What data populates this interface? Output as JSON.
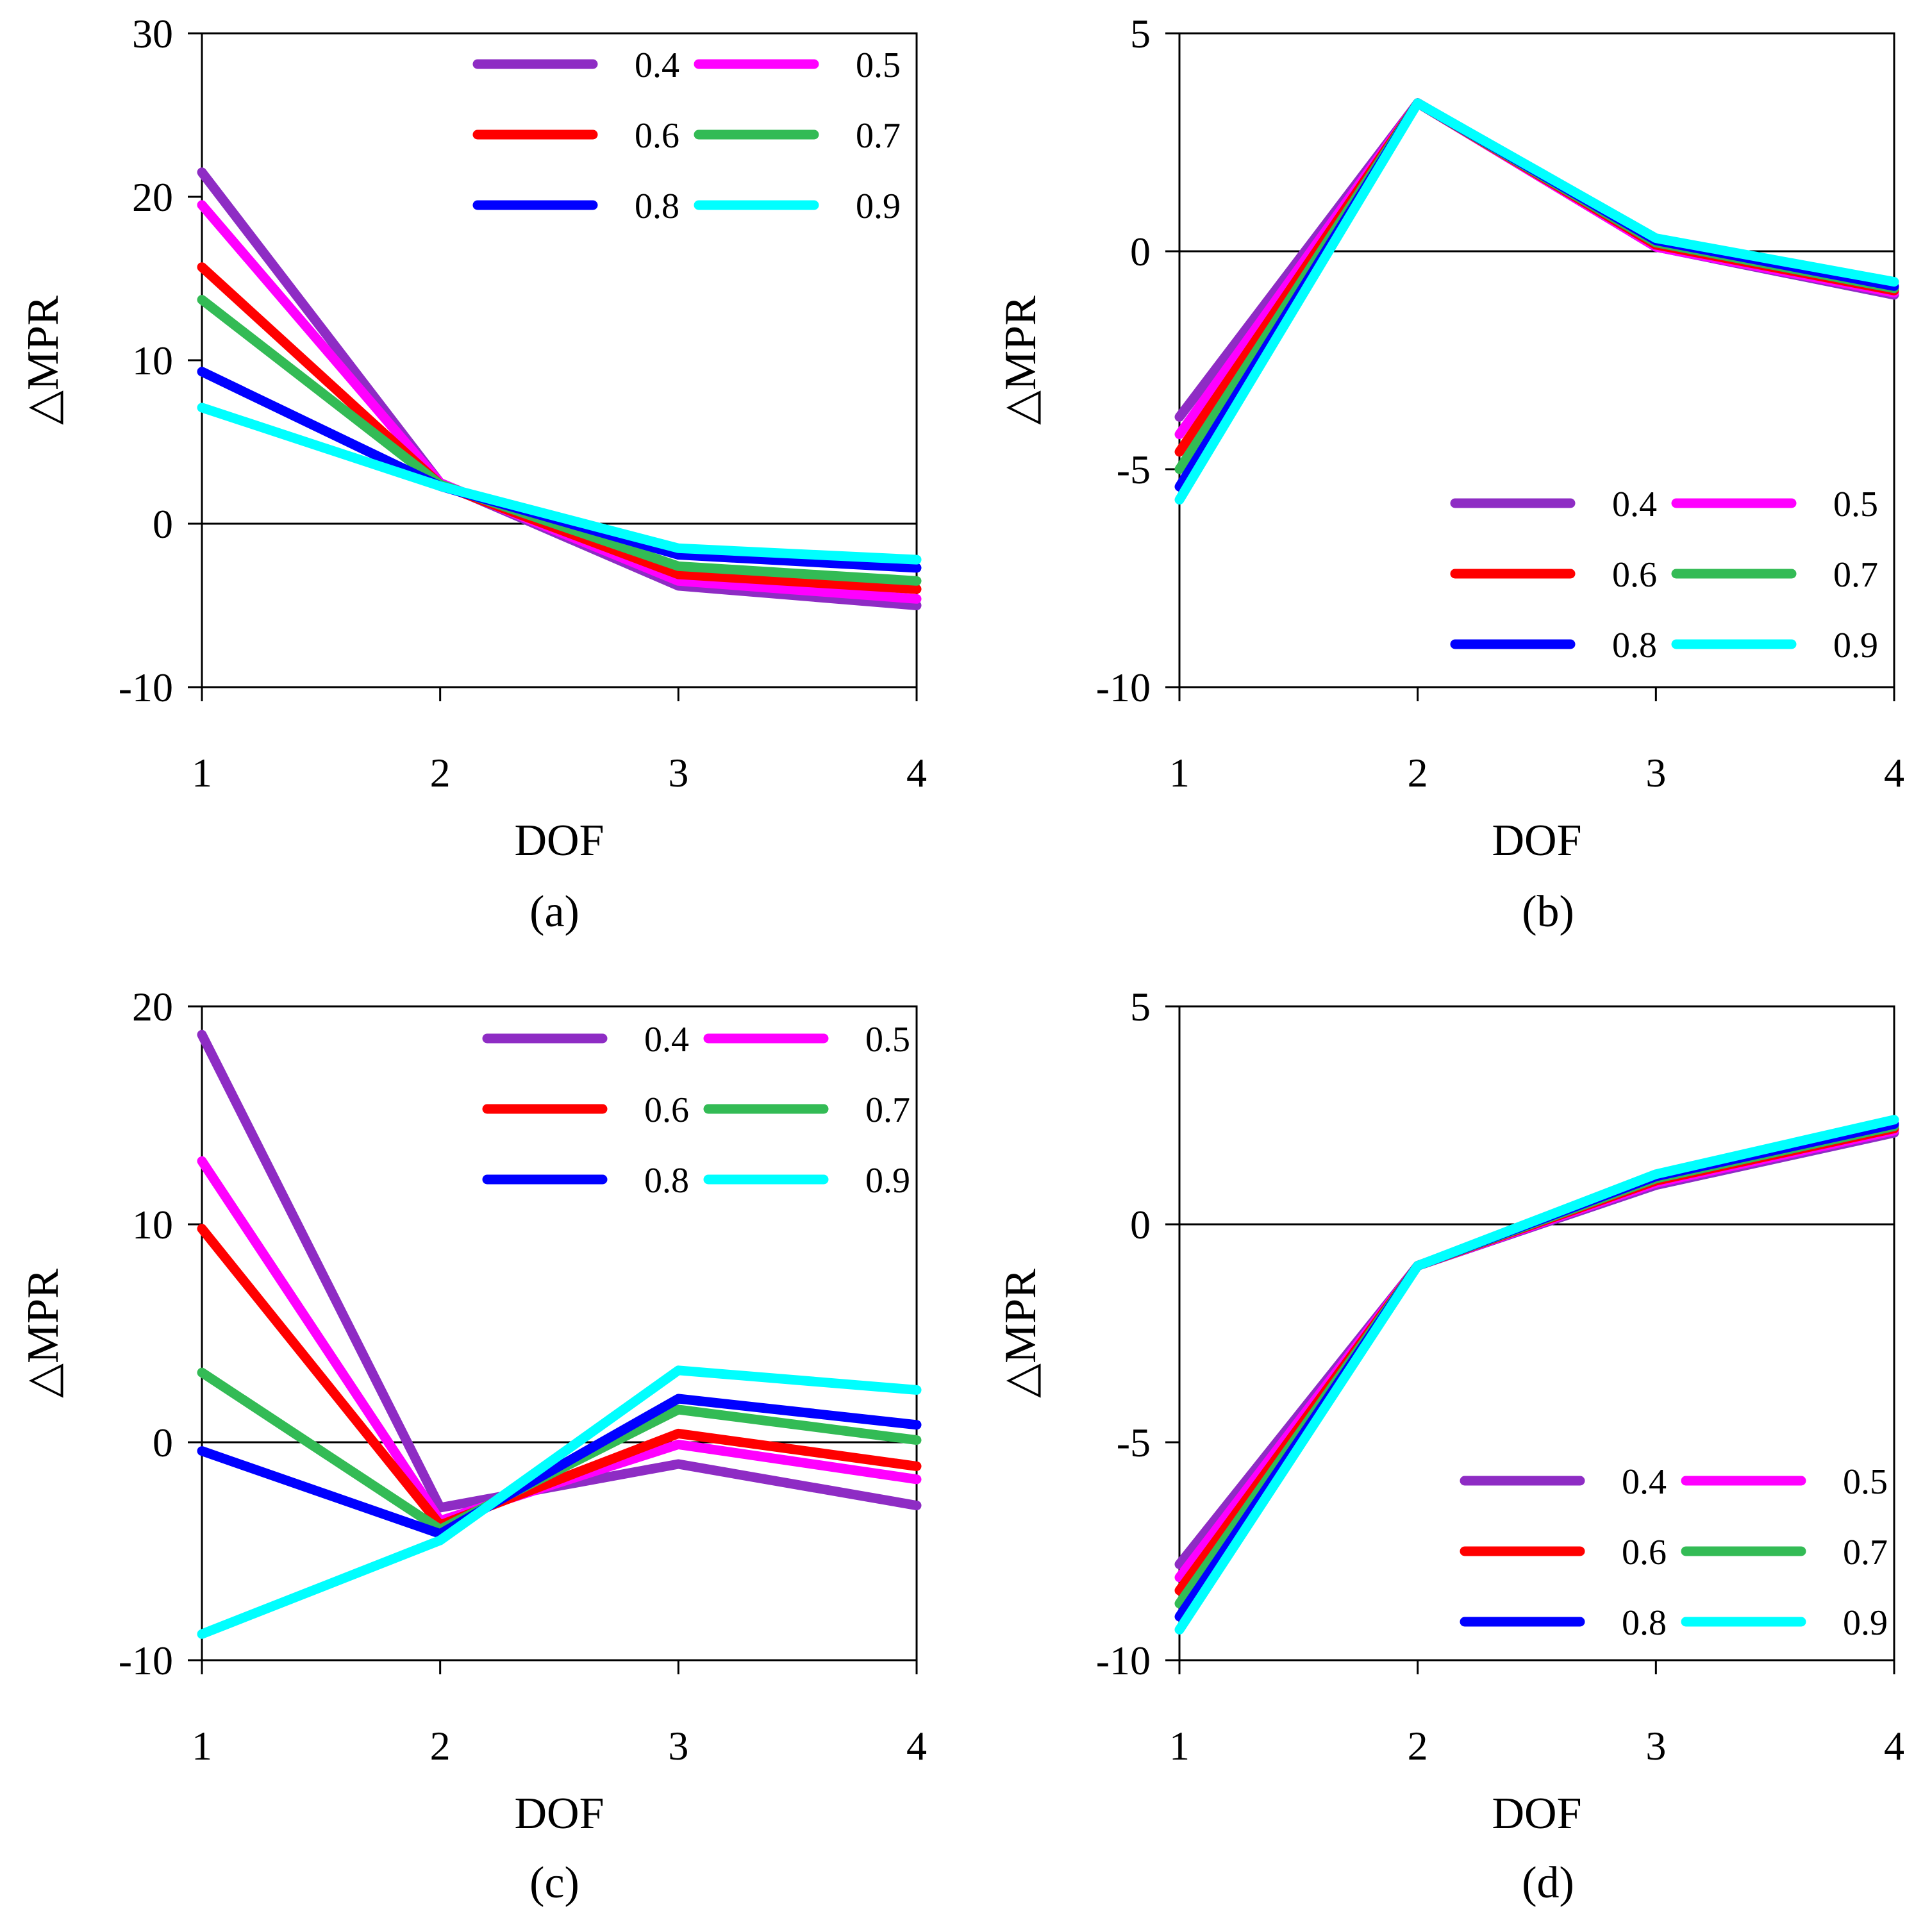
{
  "figure": {
    "chart_data": [
      {
        "type": "line",
        "panel_label": "(a)",
        "xlabel": "DOF",
        "ylabel": "△MPR",
        "x": [
          1,
          2,
          3,
          4
        ],
        "xticks": [
          "1",
          "2",
          "3",
          "4"
        ],
        "ylim": [
          -10,
          30
        ],
        "yticks": [
          "-10",
          "0",
          "10",
          "20",
          "30"
        ],
        "ytick_values": [
          -10,
          0,
          10,
          20,
          30
        ],
        "zero_line": true,
        "legend_position": "top-right",
        "series": [
          {
            "name": "0.4",
            "color": "#8e2cc4",
            "values": [
              21.5,
              2.5,
              -3.8,
              -5.0
            ]
          },
          {
            "name": "0.5",
            "color": "#ff00ff",
            "values": [
              19.5,
              2.5,
              -3.5,
              -4.6
            ]
          },
          {
            "name": "0.6",
            "color": "#ff0000",
            "values": [
              15.7,
              2.4,
              -3.1,
              -4.0
            ]
          },
          {
            "name": "0.7",
            "color": "#33bb55",
            "values": [
              13.7,
              2.4,
              -2.6,
              -3.5
            ]
          },
          {
            "name": "0.8",
            "color": "#0000ff",
            "values": [
              9.3,
              2.3,
              -1.9,
              -2.7
            ]
          },
          {
            "name": "0.9",
            "color": "#00ffff",
            "values": [
              7.1,
              2.3,
              -1.5,
              -2.2
            ]
          }
        ]
      },
      {
        "type": "line",
        "panel_label": "(b)",
        "xlabel": "DOF",
        "ylabel": "△MPR",
        "x": [
          1,
          2,
          3,
          4
        ],
        "xticks": [
          "1",
          "2",
          "3",
          "4"
        ],
        "ylim": [
          -10,
          5
        ],
        "yticks": [
          "-10",
          "-5",
          "0",
          "5"
        ],
        "ytick_values": [
          -10,
          -5,
          0,
          5
        ],
        "zero_line": true,
        "legend_position": "bottom-right",
        "series": [
          {
            "name": "0.4",
            "color": "#8e2cc4",
            "values": [
              -3.8,
              3.4,
              0.1,
              -1.0
            ]
          },
          {
            "name": "0.5",
            "color": "#ff00ff",
            "values": [
              -4.2,
              3.4,
              0.1,
              -0.95
            ]
          },
          {
            "name": "0.6",
            "color": "#ff0000",
            "values": [
              -4.6,
              3.4,
              0.15,
              -0.9
            ]
          },
          {
            "name": "0.7",
            "color": "#33bb55",
            "values": [
              -5.0,
              3.4,
              0.2,
              -0.85
            ]
          },
          {
            "name": "0.8",
            "color": "#0000ff",
            "values": [
              -5.4,
              3.4,
              0.25,
              -0.8
            ]
          },
          {
            "name": "0.9",
            "color": "#00ffff",
            "values": [
              -5.7,
              3.4,
              0.3,
              -0.7
            ]
          }
        ]
      },
      {
        "type": "line",
        "panel_label": "(c)",
        "xlabel": "DOF",
        "ylabel": "△MPR",
        "x": [
          1,
          2,
          3,
          4
        ],
        "xticks": [
          "1",
          "2",
          "3",
          "4"
        ],
        "ylim": [
          -10,
          20
        ],
        "yticks": [
          "-10",
          "0",
          "10",
          "20"
        ],
        "ytick_values": [
          -10,
          0,
          10,
          20
        ],
        "zero_line": true,
        "legend_position": "top-right",
        "series": [
          {
            "name": "0.4",
            "color": "#8e2cc4",
            "values": [
              18.7,
              -3.0,
              -1.0,
              -2.9
            ]
          },
          {
            "name": "0.5",
            "color": "#ff00ff",
            "values": [
              12.9,
              -3.6,
              -0.1,
              -1.7
            ]
          },
          {
            "name": "0.6",
            "color": "#ff0000",
            "values": [
              9.8,
              -3.8,
              0.4,
              -1.1
            ]
          },
          {
            "name": "0.7",
            "color": "#33bb55",
            "values": [
              3.2,
              -4.0,
              1.5,
              0.1
            ]
          },
          {
            "name": "0.8",
            "color": "#0000ff",
            "values": [
              -0.4,
              -4.2,
              2.0,
              0.8
            ]
          },
          {
            "name": "0.9",
            "color": "#00ffff",
            "values": [
              -8.8,
              -4.5,
              3.3,
              2.4
            ]
          }
        ]
      },
      {
        "type": "line",
        "panel_label": "(d)",
        "xlabel": "DOF",
        "ylabel": "△MPR",
        "x": [
          1,
          2,
          3,
          4
        ],
        "xticks": [
          "1",
          "2",
          "3",
          "4"
        ],
        "ylim": [
          -10,
          5
        ],
        "yticks": [
          "-10",
          "-5",
          "0",
          "5"
        ],
        "ytick_values": [
          -10,
          -5,
          0,
          5
        ],
        "zero_line": true,
        "legend_position": "bottom-right",
        "series": [
          {
            "name": "0.4",
            "color": "#8e2cc4",
            "values": [
              -7.8,
              -0.95,
              0.9,
              2.1
            ]
          },
          {
            "name": "0.5",
            "color": "#ff00ff",
            "values": [
              -8.1,
              -0.95,
              0.95,
              2.15
            ]
          },
          {
            "name": "0.6",
            "color": "#ff0000",
            "values": [
              -8.4,
              -0.95,
              1.0,
              2.2
            ]
          },
          {
            "name": "0.7",
            "color": "#33bb55",
            "values": [
              -8.7,
              -0.95,
              1.05,
              2.25
            ]
          },
          {
            "name": "0.8",
            "color": "#0000ff",
            "values": [
              -9.0,
              -0.95,
              1.1,
              2.3
            ]
          },
          {
            "name": "0.9",
            "color": "#00ffff",
            "values": [
              -9.3,
              -0.95,
              1.15,
              2.4
            ]
          }
        ]
      }
    ]
  }
}
